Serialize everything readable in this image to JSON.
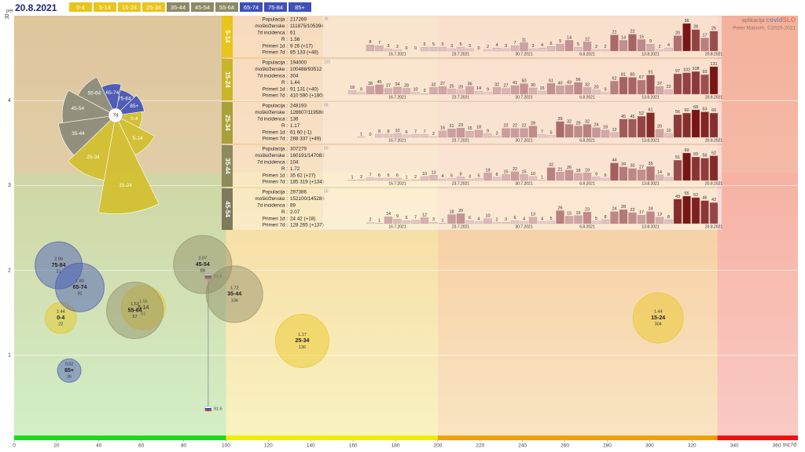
{
  "header": {
    "day": "pet",
    "date": "20.8.2021",
    "groups": [
      {
        "name": "0-4",
        "color": "#e8c51a"
      },
      {
        "name": "5-14",
        "color": "#e8c51a"
      },
      {
        "name": "15-24",
        "color": "#e8c51a"
      },
      {
        "name": "25-34",
        "color": "#e8c51a"
      },
      {
        "name": "35-44",
        "color": "#8c8a66"
      },
      {
        "name": "45-54",
        "color": "#8c8a66"
      },
      {
        "name": "55-64",
        "color": "#8c8a66"
      },
      {
        "name": "65-74",
        "color": "#3f51b5"
      },
      {
        "name": "75-84",
        "color": "#3f51b5"
      },
      {
        "name": "85+",
        "color": "#3f51b5"
      }
    ]
  },
  "chart_data": {
    "type": "bubble",
    "x_label": "Inc7d",
    "y_label": "R",
    "xlim": [
      0,
      370
    ],
    "ylim": [
      0,
      5
    ],
    "xticks": [
      0,
      20,
      40,
      60,
      80,
      100,
      120,
      140,
      160,
      180,
      200,
      220,
      240,
      260,
      280,
      300,
      320,
      340,
      360
    ],
    "yticks": [
      1,
      2,
      3,
      4
    ],
    "grid": true,
    "zones": [
      {
        "from": 0,
        "to": 100,
        "color": "#1ed81e"
      },
      {
        "from": 100,
        "to": 200,
        "color": "#f0ee00"
      },
      {
        "from": 200,
        "to": 332,
        "color": "#f0a000"
      },
      {
        "from": 332,
        "to": 370,
        "color": "#f01010"
      }
    ],
    "bubbles": [
      {
        "name": "0-4",
        "inc": 22,
        "r": 1.44
      },
      {
        "name": "5-14",
        "inc": 61,
        "r": 1.56
      },
      {
        "name": "15-24",
        "inc": 304,
        "r": 1.44
      },
      {
        "name": "25-34",
        "inc": 136,
        "r": 1.17
      },
      {
        "name": "35-44",
        "inc": 104,
        "r": 1.72
      },
      {
        "name": "45-54",
        "inc": 89,
        "r": 2.07
      },
      {
        "name": "55-64",
        "inc": 57,
        "r": 1.53
      },
      {
        "name": "65-74",
        "inc": 31,
        "r": 1.8,
        "r_label": "1.80"
      },
      {
        "name": "75-84",
        "inc": 21,
        "r": 2.06
      },
      {
        "name": "85+",
        "inc": 26,
        "r": 0.82
      }
    ],
    "slo": {
      "inc": 91.6,
      "r": [
        1.93,
        0.37
      ]
    }
  },
  "rose": {
    "center": "7d"
  },
  "panels": {
    "stat_labels": [
      "Populacija :",
      "moški/ženske :",
      "7d incidenca :",
      "R :",
      "Primeri 1d :",
      "Primeri 7d :"
    ],
    "dates": [
      "16.7.2021",
      "23.7.2021",
      "30.7.2021",
      "6.8.2021",
      "13.8.2021",
      "20.8.2021"
    ],
    "items": [
      {
        "group": "5-14",
        "color": "#e8c51a",
        "populacija": 217269,
        "mz": "111875/105394",
        "inc": 61,
        "r": 1.56,
        "p1d": "9 26 (+17)",
        "p7d": "85 133 (+48)",
        "max": 36,
        "values": [
          8,
          7,
          3,
          2,
          0,
          0,
          5,
          5,
          5,
          3,
          5,
          3,
          0,
          2,
          4,
          3,
          7,
          11,
          3,
          4,
          6,
          9,
          14,
          5,
          12,
          2,
          2,
          21,
          14,
          22,
          15,
          9,
          2,
          4,
          20,
          36,
          28,
          17,
          26
        ]
      },
      {
        "group": "15-24",
        "color": "#c9b52a",
        "populacija": 194000,
        "mz": "100488/93512",
        "inc": 304,
        "r": 1.44,
        "p1d": "91 131 (+40)",
        "p7d": "410 590 (+180)",
        "max": 131,
        "values": [
          18,
          9,
          38,
          45,
          27,
          34,
          28,
          10,
          3,
          32,
          37,
          25,
          20,
          36,
          14,
          9,
          32,
          27,
          41,
          50,
          30,
          15,
          51,
          40,
          43,
          56,
          32,
          20,
          9,
          62,
          81,
          80,
          67,
          91,
          37,
          22,
          97,
          102,
          108,
          93,
          131
        ]
      },
      {
        "group": "25-34",
        "color": "#a9a03a",
        "populacija": 248193,
        "mz": "128607/119586",
        "inc": 136,
        "r": 1.17,
        "p1d": "61 60 (-1)",
        "p7d": "288 337 (+49)",
        "max": 68,
        "values": [
          1,
          0,
          8,
          8,
          10,
          6,
          7,
          7,
          2,
          16,
          21,
          23,
          15,
          18,
          9,
          3,
          22,
          22,
          22,
          28,
          7,
          5,
          39,
          32,
          28,
          32,
          24,
          18,
          12,
          45,
          45,
          52,
          61,
          20,
          10,
          56,
          60,
          68,
          63,
          60
        ]
      },
      {
        "group": "35-44",
        "color": "#8c8a5a",
        "populacija": 307279,
        "mz": "160191/147088",
        "inc": 104,
        "r": 1.72,
        "p1d": "35 62 (+27)",
        "p7d": "185 319 (+134)",
        "max": 69,
        "values": [
          1,
          2,
          7,
          6,
          6,
          6,
          1,
          2,
          10,
          13,
          4,
          5,
          9,
          3,
          5,
          19,
          8,
          15,
          22,
          15,
          10,
          1,
          32,
          21,
          26,
          18,
          19,
          9,
          6,
          44,
          34,
          30,
          27,
          35,
          14,
          8,
          51,
          69,
          59,
          56,
          62
        ]
      },
      {
        "group": "45-54",
        "color": "#7d7b5c",
        "populacija": 297386,
        "mz": "152100/145286",
        "inc": 89,
        "r": 2.07,
        "p1d": "24 42 (+18)",
        "p7d": "128 265 (+137)",
        "max": 55,
        "values": [
          2,
          1,
          14,
          9,
          6,
          7,
          12,
          3,
          1,
          18,
          20,
          6,
          4,
          10,
          2,
          3,
          6,
          4,
          13,
          4,
          5,
          26,
          15,
          16,
          23,
          5,
          8,
          24,
          28,
          22,
          17,
          24,
          13,
          8,
          49,
          55,
          52,
          46,
          42
        ]
      }
    ]
  },
  "credits": {
    "app": "aplikacija",
    "brand1": "covid",
    "brand2": "SLO",
    "author": "Peter Malovrh, ©2020-2021"
  }
}
